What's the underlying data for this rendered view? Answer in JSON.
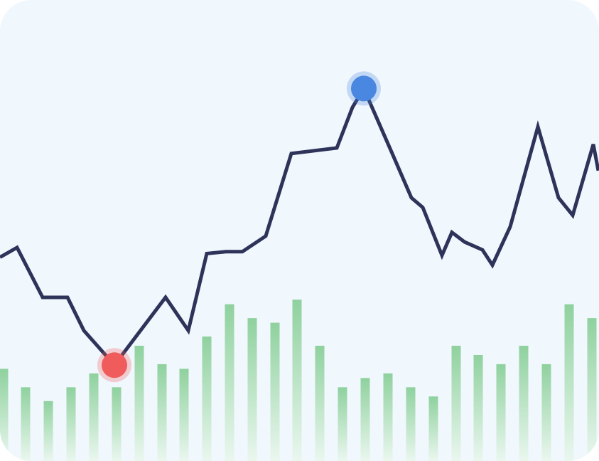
{
  "chart_data": {
    "type": "line",
    "title": "",
    "xlabel": "",
    "ylabel": "",
    "x": [
      0,
      1,
      2,
      3,
      4,
      5,
      6,
      7,
      8,
      9,
      10,
      11,
      12,
      13,
      14,
      15,
      16,
      17,
      18,
      19,
      20,
      21,
      22,
      23,
      24,
      25,
      26,
      27,
      28,
      29,
      30,
      31,
      32,
      33,
      34,
      35,
      36,
      37,
      38,
      39,
      40,
      41,
      42,
      43,
      44,
      45,
      46,
      47,
      48,
      49,
      50,
      51,
      52,
      53,
      54,
      55,
      56,
      57,
      58,
      59,
      60,
      61,
      62,
      63,
      64,
      65,
      66,
      67,
      68,
      69,
      70,
      71,
      72,
      73,
      74,
      75,
      76,
      77,
      78,
      79,
      80,
      81,
      82,
      83,
      84,
      85,
      86,
      87,
      88,
      89,
      90,
      91,
      92,
      93,
      94,
      95,
      96,
      97,
      98,
      99,
      100,
      101,
      102,
      103,
      104,
      105,
      106,
      107,
      108,
      109,
      110,
      111,
      112,
      113,
      114,
      115,
      116,
      117,
      118,
      119,
      120,
      121,
      122,
      123,
      124,
      125,
      126,
      127,
      128,
      129,
      130,
      131,
      132,
      133,
      134,
      135,
      136,
      137,
      138,
      139,
      140,
      141,
      142,
      143,
      144,
      145,
      146,
      147,
      148,
      149,
      150,
      151,
      152,
      153,
      154,
      155,
      156,
      157,
      158,
      159,
      160,
      161,
      162,
      163,
      164,
      165,
      166,
      167,
      168,
      169,
      170,
      171,
      172,
      173,
      174,
      175,
      176,
      177,
      178,
      179,
      180,
      181,
      182,
      183,
      184,
      185,
      186,
      187,
      188,
      189,
      190,
      191,
      192,
      193,
      194,
      195,
      196,
      197,
      198,
      199,
      200,
      201,
      202,
      203,
      204,
      205,
      206,
      207,
      208,
      209,
      210,
      211,
      212,
      213,
      214,
      215,
      216,
      217,
      218,
      219,
      220,
      221,
      222,
      223,
      224,
      225,
      226,
      227,
      228,
      229,
      230,
      231,
      232,
      233,
      234,
      235,
      236,
      237,
      238,
      239,
      240,
      241,
      242,
      243,
      244,
      245,
      246,
      247,
      248,
      249,
      250,
      251,
      252,
      253,
      254,
      255,
      256,
      257,
      258,
      259,
      260,
      261,
      262,
      263,
      264,
      265,
      266,
      267,
      268,
      269,
      270,
      271,
      272,
      273,
      274,
      275,
      276,
      277,
      278,
      279,
      280,
      281,
      282,
      283,
      284,
      285,
      286,
      287,
      288,
      289,
      290,
      291,
      292,
      293,
      294,
      295,
      296,
      297,
      298,
      299,
      300,
      301,
      302,
      303,
      304,
      305,
      306,
      307,
      308,
      309,
      310,
      311,
      312,
      313,
      314,
      315,
      316,
      317,
      318,
      319,
      320,
      321,
      322,
      323,
      324,
      325,
      326,
      327,
      328,
      329,
      330,
      331,
      332,
      333,
      334,
      335,
      336,
      337,
      338,
      339,
      340,
      341,
      342,
      343,
      344,
      345,
      346,
      347,
      348,
      349,
      350,
      351,
      352,
      353,
      354,
      355,
      356,
      357,
      358,
      359,
      360,
      361,
      362,
      363,
      364,
      365,
      366,
      367,
      368,
      369,
      370,
      371,
      372,
      373,
      374,
      375,
      376,
      377,
      378,
      379,
      380,
      381,
      382,
      383,
      384,
      385,
      386,
      387,
      388,
      389,
      390,
      391,
      392,
      393,
      394,
      395,
      396,
      397,
      398,
      399,
      400,
      401,
      402,
      403,
      404,
      405,
      406,
      407,
      408,
      409,
      410,
      411,
      412,
      413,
      414,
      415,
      416,
      417,
      418,
      419,
      420,
      421,
      422,
      423,
      424,
      425,
      426,
      427,
      428,
      429,
      430,
      431,
      432,
      433,
      434,
      435,
      436,
      437,
      438,
      439,
      440,
      441,
      442,
      443,
      444,
      445,
      446,
      447,
      448,
      449,
      450,
      451,
      452,
      453,
      454,
      455,
      456,
      457,
      458,
      459,
      460,
      461,
      462,
      463,
      464,
      465,
      466,
      467,
      468,
      469,
      470,
      471,
      472,
      473,
      474,
      475,
      476,
      477,
      478,
      479,
      480,
      481,
      482,
      483,
      484,
      485,
      486,
      487,
      488,
      489,
      490,
      491,
      492,
      493,
      494,
      495,
      496,
      497,
      498,
      499,
      500,
      501,
      502,
      503,
      504,
      505,
      506,
      507,
      508,
      509,
      510,
      511,
      512,
      513,
      514,
      515,
      516,
      517,
      518,
      519,
      520,
      521,
      522,
      523,
      524,
      525,
      526,
      527,
      528,
      529,
      530,
      531,
      532,
      533,
      534,
      535,
      536,
      537,
      538,
      539,
      540,
      541,
      542,
      543,
      544,
      545,
      546,
      547,
      548,
      549,
      550,
      551,
      552,
      553,
      554,
      555,
      556,
      557,
      558,
      559,
      560,
      561,
      562,
      563,
      564,
      565,
      566,
      567,
      568,
      569,
      570,
      571,
      572,
      573,
      574,
      575,
      576,
      577,
      578,
      579,
      580,
      581,
      582,
      583,
      584,
      585,
      586,
      587,
      588,
      589,
      590,
      591,
      592,
      593,
      594,
      595,
      596,
      597,
      598,
      599,
      600,
      601,
      602,
      603,
      604,
      605,
      606,
      607,
      608,
      609,
      610,
      611,
      612,
      613,
      614,
      615,
      616,
      617,
      618,
      619,
      620,
      621,
      622,
      623,
      624,
      625,
      626,
      627,
      628,
      629,
      630,
      631,
      632,
      633,
      634,
      635,
      636,
      637,
      638,
      639,
      640,
      641,
      642,
      643,
      644,
      645,
      646,
      647,
      648,
      649,
      650,
      651,
      652,
      653,
      654,
      655,
      656,
      657,
      658,
      659,
      660,
      661,
      662,
      663,
      664,
      665,
      666,
      667,
      668,
      669,
      670,
      671,
      672,
      673,
      674,
      675,
      676,
      677,
      678,
      679,
      680,
      681,
      682,
      683,
      684,
      685,
      686,
      687,
      688,
      689,
      690,
      691,
      692,
      693,
      694,
      695,
      696,
      697,
      698,
      699,
      700,
      701,
      702,
      703,
      704,
      705,
      706,
      707,
      708,
      709,
      710,
      711,
      712,
      713,
      714,
      715,
      716,
      717,
      718,
      719,
      720,
      721,
      722,
      723,
      724,
      725,
      726,
      727,
      728,
      729,
      730,
      731,
      732,
      733,
      734,
      735,
      736,
      737,
      738,
      739,
      740,
      741,
      742,
      743,
      744,
      745,
      746,
      747,
      748,
      749,
      750,
      751,
      752,
      753,
      754,
      755,
      756,
      757,
      758,
      759,
      760,
      761,
      762,
      763,
      764,
      765,
      766,
      767,
      768,
      769,
      770,
      771,
      772,
      773,
      774,
      775,
      776,
      777,
      778,
      779,
      780,
      781,
      782,
      783,
      784,
      785,
      786,
      787,
      788,
      789,
      790,
      791,
      792,
      793,
      794,
      795,
      796,
      797,
      798,
      799,
      800,
      801,
      802,
      803,
      804,
      805,
      806,
      807,
      808,
      809,
      810,
      811,
      812,
      813,
      814,
      815,
      816,
      817,
      818,
      819,
      820,
      821,
      822,
      823,
      824,
      825,
      826,
      827,
      828,
      829,
      830,
      831,
      832,
      833,
      834,
      835,
      836,
      837,
      838,
      839,
      840,
      841,
      842
    ],
    "series": [
      {
        "type": "line",
        "points": [
          [
            0,
            44.2
          ],
          [
            24,
            46.3
          ],
          [
            60,
            35.5
          ],
          [
            95,
            35.5
          ],
          [
            118,
            28.3
          ],
          [
            161,
            20.8
          ],
          [
            233,
            35.5
          ],
          [
            265,
            28.3
          ],
          [
            291,
            45.0
          ],
          [
            318,
            45.4
          ],
          [
            341,
            45.4
          ],
          [
            374,
            48.8
          ],
          [
            410,
            66.7
          ],
          [
            474,
            67.9
          ],
          [
            496,
            76.7
          ],
          [
            512,
            80.8
          ],
          [
            552,
            66.7
          ],
          [
            579,
            57.1
          ],
          [
            595,
            55.0
          ],
          [
            622,
            44.6
          ],
          [
            636,
            49.6
          ],
          [
            654,
            47.5
          ],
          [
            679,
            45.8
          ],
          [
            693,
            42.5
          ],
          [
            718,
            50.8
          ],
          [
            757,
            72.5
          ],
          [
            786,
            57.1
          ],
          [
            806,
            53.3
          ],
          [
            835,
            68.7
          ],
          [
            842,
            63.0
          ]
        ]
      },
      {
        "type": "bar",
        "x": [
          5,
          36,
          68,
          100,
          132,
          164,
          196,
          228,
          259,
          291,
          323,
          355,
          387,
          418,
          450,
          482,
          514,
          546,
          578,
          610,
          642,
          673,
          705,
          737,
          769,
          801,
          833
        ],
        "values": [
          20,
          16,
          13,
          16,
          19,
          16,
          25,
          21,
          20,
          27,
          34,
          31,
          30,
          35,
          25,
          16,
          18,
          19,
          16,
          14,
          25,
          23,
          21,
          25,
          21,
          34,
          31
        ]
      }
    ],
    "highlights": [
      {
        "name": "min",
        "x": 161,
        "y": 20.8,
        "color": "#f05c5c"
      },
      {
        "name": "max",
        "x": 512,
        "y": 80.8,
        "color": "#4a87e0"
      }
    ],
    "ylim": [
      0,
      100
    ],
    "xlim": [
      0,
      843
    ],
    "grid": false,
    "colors": {
      "line": "#2e3359",
      "bar_top": "#8fd19e",
      "bar_bottom": "#eaf7ef",
      "background": "#f0f7fd"
    }
  }
}
